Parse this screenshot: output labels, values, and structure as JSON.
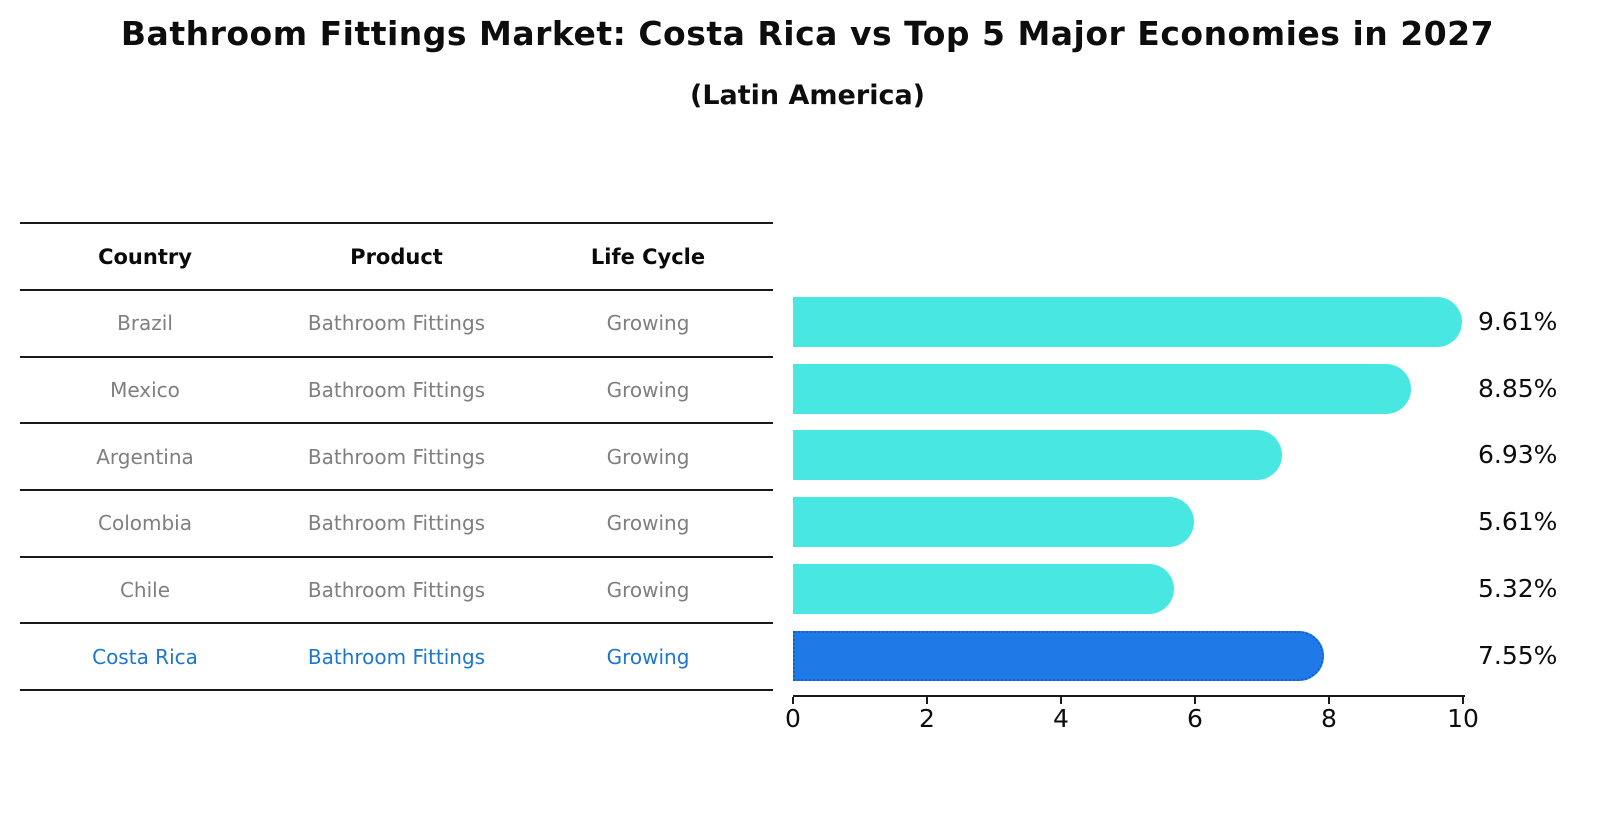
{
  "title": "Bathroom Fittings Market: Costa Rica vs Top 5 Major Economies in 2027",
  "subtitle": "(Latin America)",
  "table": {
    "headers": [
      "Country",
      "Product",
      "Life Cycle"
    ],
    "rows": [
      {
        "country": "Brazil",
        "product": "Bathroom Fittings",
        "life_cycle": "Growing"
      },
      {
        "country": "Mexico",
        "product": "Bathroom Fittings",
        "life_cycle": "Growing"
      },
      {
        "country": "Argentina",
        "product": "Bathroom Fittings",
        "life_cycle": "Growing"
      },
      {
        "country": "Colombia",
        "product": "Bathroom Fittings",
        "life_cycle": "Growing"
      },
      {
        "country": "Chile",
        "product": "Bathroom Fittings",
        "life_cycle": "Growing"
      },
      {
        "country": "Costa Rica",
        "product": "Bathroom Fittings",
        "life_cycle": "Growing"
      }
    ],
    "highlight_row": "Costa Rica"
  },
  "chart_data": {
    "type": "bar",
    "orientation": "horizontal",
    "title": "Bathroom Fittings Market: Costa Rica vs Top 5 Major Economies in 2027",
    "subtitle": "(Latin America)",
    "categories": [
      "Brazil",
      "Mexico",
      "Argentina",
      "Colombia",
      "Chile",
      "Costa Rica"
    ],
    "values": [
      9.61,
      8.85,
      6.93,
      5.61,
      5.32,
      7.55
    ],
    "value_labels": [
      "9.61%",
      "8.85%",
      "6.93%",
      "5.61%",
      "5.32%",
      "7.55%"
    ],
    "xlim": [
      0,
      10
    ],
    "xticks": [
      0,
      2,
      4,
      6,
      8,
      10
    ],
    "grid": false,
    "legend": false,
    "highlight_index": 5,
    "bar_color": "#48e7e2",
    "highlight_bar_color": "#1f7ae8",
    "highlight_border_color": "#1461d2"
  },
  "colors": {
    "text": "#0d0d0d",
    "muted_text": "#7f7f7f",
    "highlight_text": "#1d76cf",
    "line": "#1a1a1a",
    "background": "#ffffff"
  }
}
